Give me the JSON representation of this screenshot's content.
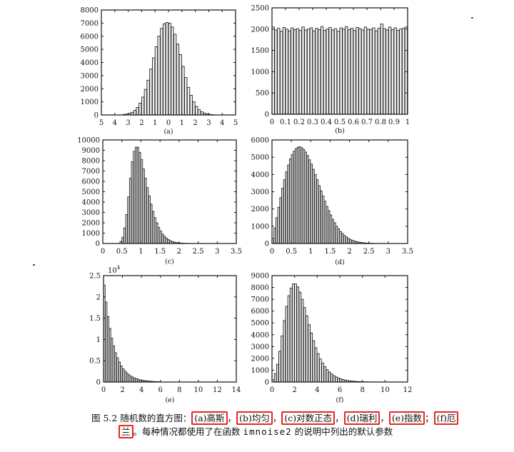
{
  "figure": {
    "panels": [
      {
        "id": "a",
        "label": "(a)",
        "type": "bar",
        "x_ticks": [
          "5",
          "4",
          "3",
          "2",
          "1",
          "0",
          "1",
          "2",
          "3",
          "4",
          "5"
        ],
        "y_ticks": [
          "8000",
          "7000",
          "6000",
          "5000",
          "4000",
          "3000",
          "2000",
          "1000",
          "0"
        ],
        "x_range": [
          -5,
          5
        ],
        "y_range": [
          0,
          8000
        ],
        "bins": [
          -3.3,
          -3.1,
          -2.9,
          -2.7,
          -2.5,
          -2.3,
          -2.1,
          -1.9,
          -1.7,
          -1.5,
          -1.3,
          -1.1,
          -0.9,
          -0.7,
          -0.5,
          -0.3,
          -0.1,
          0.1,
          0.3,
          0.5,
          0.7,
          0.9,
          1.1,
          1.3,
          1.5,
          1.7,
          1.9,
          2.1,
          2.3,
          2.5,
          2.7,
          2.9,
          3.1,
          3.3
        ],
        "values": [
          40,
          70,
          120,
          200,
          350,
          570,
          900,
          1360,
          1950,
          2650,
          3500,
          4350,
          5200,
          6000,
          6600,
          6950,
          7050,
          7000,
          6700,
          6150,
          5400,
          4600,
          3700,
          2850,
          2100,
          1500,
          1000,
          640,
          400,
          240,
          140,
          80,
          40,
          20
        ]
      },
      {
        "id": "b",
        "label": "(b)",
        "type": "bar",
        "x_ticks": [
          "0",
          "0.1",
          "0.2",
          "0.3",
          "0.4",
          "0.5",
          "0.6",
          "0.7",
          "0.8",
          "0.9",
          "1"
        ],
        "y_ticks": [
          "2500",
          "2000",
          "1500",
          "1000",
          "500",
          "0"
        ],
        "x_range": [
          0,
          1
        ],
        "y_range": [
          0,
          2500
        ],
        "bins": [
          0.01,
          0.03,
          0.05,
          0.07,
          0.09,
          0.11,
          0.13,
          0.15,
          0.17,
          0.19,
          0.21,
          0.23,
          0.25,
          0.27,
          0.29,
          0.31,
          0.33,
          0.35,
          0.37,
          0.39,
          0.41,
          0.43,
          0.45,
          0.47,
          0.49,
          0.51,
          0.53,
          0.55,
          0.57,
          0.59,
          0.61,
          0.63,
          0.65,
          0.67,
          0.69,
          0.71,
          0.73,
          0.75,
          0.77,
          0.79,
          0.81,
          0.83,
          0.85,
          0.87,
          0.89,
          0.91,
          0.93,
          0.95,
          0.97,
          0.99
        ],
        "values": [
          2050,
          1980,
          2020,
          1950,
          2040,
          2000,
          1960,
          2030,
          1990,
          2010,
          1970,
          2050,
          1980,
          2000,
          2030,
          1960,
          2020,
          1990,
          2060,
          1970,
          2000,
          2040,
          1980,
          2010,
          1950,
          2030,
          2000,
          2060,
          1990,
          2020,
          1970,
          2040,
          2010,
          1980,
          2050,
          2000,
          1990,
          2030,
          1960,
          2020,
          2120,
          2010,
          1980,
          2050,
          1990,
          2030,
          1970,
          2000,
          2020,
          2050
        ]
      },
      {
        "id": "c",
        "label": "(c)",
        "type": "bar",
        "x_ticks": [
          "0",
          "0.5",
          "1",
          "1.5",
          "2",
          "2.5",
          "3",
          "3.5"
        ],
        "y_ticks": [
          "10000",
          "9000",
          "8000",
          "7000",
          "6000",
          "5000",
          "4000",
          "3000",
          "2000",
          "1000",
          "0"
        ],
        "x_range": [
          0,
          3.5
        ],
        "y_range": [
          0,
          10000
        ],
        "bins": [
          0.475,
          0.525,
          0.575,
          0.625,
          0.675,
          0.725,
          0.775,
          0.825,
          0.875,
          0.925,
          0.975,
          1.025,
          1.075,
          1.125,
          1.175,
          1.225,
          1.275,
          1.325,
          1.375,
          1.425,
          1.475,
          1.525,
          1.575,
          1.625,
          1.675,
          1.725,
          1.775,
          1.825,
          1.875,
          1.925,
          1.975,
          2.025,
          2.075,
          2.125,
          2.175,
          2.225,
          2.275,
          2.325
        ],
        "values": [
          200,
          600,
          1500,
          2800,
          4500,
          6300,
          7900,
          8900,
          9300,
          9300,
          8800,
          8100,
          7200,
          6300,
          5400,
          4600,
          3800,
          3100,
          2500,
          2000,
          1550,
          1200,
          900,
          700,
          520,
          380,
          280,
          200,
          140,
          100,
          70,
          50,
          35,
          25,
          15,
          10,
          8,
          5
        ]
      },
      {
        "id": "d",
        "label": "(d)",
        "type": "bar",
        "x_ticks": [
          "0",
          "0.5",
          "1",
          "1.5",
          "2",
          "2.5",
          "3",
          "3.5"
        ],
        "y_ticks": [
          "6000",
          "5000",
          "4000",
          "3000",
          "2000",
          "1000",
          "0"
        ],
        "x_range": [
          0,
          3.5
        ],
        "y_range": [
          0,
          6000
        ],
        "bins": [
          0.025,
          0.075,
          0.125,
          0.175,
          0.225,
          0.275,
          0.325,
          0.375,
          0.425,
          0.475,
          0.525,
          0.575,
          0.625,
          0.675,
          0.725,
          0.775,
          0.825,
          0.875,
          0.925,
          0.975,
          1.025,
          1.075,
          1.125,
          1.175,
          1.225,
          1.275,
          1.325,
          1.375,
          1.425,
          1.475,
          1.525,
          1.575,
          1.625,
          1.675,
          1.725,
          1.775,
          1.825,
          1.875,
          1.925,
          1.975,
          2.025,
          2.075,
          2.125,
          2.175,
          2.225,
          2.275,
          2.325,
          2.375,
          2.425,
          2.475,
          2.525,
          2.575,
          2.625,
          2.675,
          2.725,
          2.775
        ],
        "values": [
          300,
          900,
          1500,
          2100,
          2650,
          3200,
          3700,
          4150,
          4550,
          4900,
          5150,
          5350,
          5500,
          5580,
          5600,
          5550,
          5450,
          5300,
          5100,
          4850,
          4600,
          4300,
          4000,
          3700,
          3350,
          3050,
          2750,
          2450,
          2150,
          1900,
          1650,
          1400,
          1200,
          1000,
          850,
          700,
          580,
          470,
          380,
          300,
          240,
          190,
          150,
          115,
          90,
          70,
          55,
          40,
          30,
          22,
          16,
          12,
          9,
          6,
          4,
          3
        ]
      },
      {
        "id": "e",
        "label": "(e)",
        "type": "bar",
        "x_ticks": [
          "0",
          "2",
          "4",
          "6",
          "8",
          "10",
          "12",
          "14"
        ],
        "y_ticks": [
          "2.5",
          "2",
          "1.5",
          "1",
          "0.5",
          "0"
        ],
        "y_exponent_base": "10",
        "y_exponent": "4",
        "x_range": [
          0,
          14
        ],
        "y_range": [
          0,
          2.5
        ],
        "bins": [
          0.1,
          0.3,
          0.5,
          0.7,
          0.9,
          1.1,
          1.3,
          1.5,
          1.7,
          1.9,
          2.1,
          2.3,
          2.5,
          2.7,
          2.9,
          3.1,
          3.3,
          3.5,
          3.7,
          3.9,
          4.1,
          4.3,
          4.5,
          4.7,
          4.9,
          5.1,
          5.3,
          5.5,
          5.7,
          5.9
        ],
        "values": [
          2.28,
          1.88,
          1.54,
          1.26,
          1.03,
          0.85,
          0.69,
          0.57,
          0.47,
          0.38,
          0.31,
          0.26,
          0.21,
          0.17,
          0.14,
          0.115,
          0.095,
          0.078,
          0.064,
          0.052,
          0.043,
          0.035,
          0.029,
          0.023,
          0.019,
          0.016,
          0.013,
          0.01,
          0.008,
          0.006
        ]
      },
      {
        "id": "f",
        "label": "(f)",
        "type": "bar",
        "x_ticks": [
          "0",
          "2",
          "4",
          "6",
          "8",
          "10",
          "12"
        ],
        "y_ticks": [
          "9000",
          "8000",
          "7000",
          "6000",
          "5000",
          "4000",
          "3000",
          "2000",
          "1000",
          "0"
        ],
        "x_range": [
          0,
          12
        ],
        "y_range": [
          0,
          9000
        ],
        "bins": [
          0.1,
          0.3,
          0.5,
          0.7,
          0.9,
          1.1,
          1.3,
          1.5,
          1.7,
          1.9,
          2.1,
          2.3,
          2.5,
          2.7,
          2.9,
          3.1,
          3.3,
          3.5,
          3.7,
          3.9,
          4.1,
          4.3,
          4.5,
          4.7,
          4.9,
          5.1,
          5.3,
          5.5,
          5.7,
          5.9,
          6.1,
          6.3,
          6.5,
          6.7,
          6.9,
          7.1,
          7.3,
          7.5,
          7.7,
          7.9,
          8.1,
          8.3,
          8.5,
          8.7,
          8.9,
          9.1,
          9.3,
          9.5
        ],
        "values": [
          200,
          700,
          1500,
          2600,
          3900,
          5200,
          6400,
          7300,
          7950,
          8300,
          8300,
          8050,
          7600,
          7000,
          6300,
          5600,
          4850,
          4150,
          3500,
          2900,
          2400,
          1950,
          1600,
          1300,
          1050,
          850,
          680,
          540,
          430,
          340,
          270,
          210,
          165,
          130,
          100,
          80,
          62,
          48,
          37,
          28,
          21,
          16,
          12,
          9,
          7,
          5,
          4,
          3
        ]
      }
    ]
  },
  "caption": {
    "prefix": "图 5.2   随机数的直方图：",
    "items": [
      "(a)高斯",
      "(b)均匀",
      "(c)对数正态",
      "(d)瑞利",
      "(e)指数"
    ],
    "sep1": "，",
    "sep2": "，",
    "sep3": "，",
    "sep4": "，",
    "sep5": "；",
    "item_f_part1": "(f)厄",
    "item_f_part2": "兰",
    "line2_text_a": "。每种情况都使用了在函数 ",
    "line2_code": "imnoise2",
    "line2_text_b": " 的说明中列出的默认参数"
  },
  "highlight_color": "#e8261f"
}
